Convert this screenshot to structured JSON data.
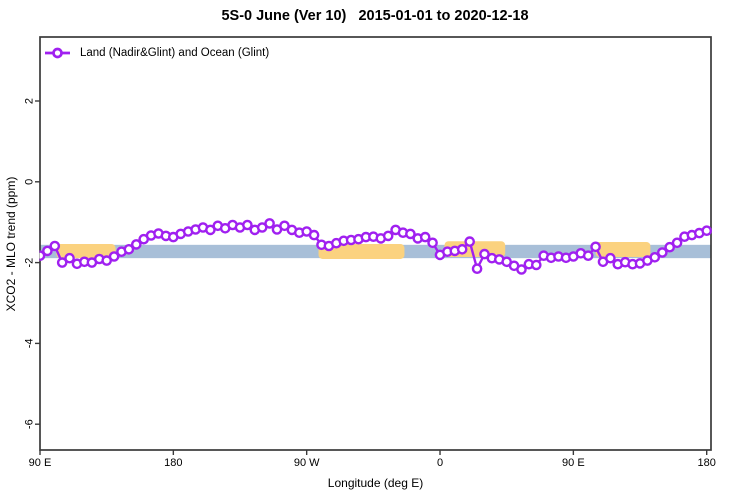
{
  "title": "5S-0 June (Ver 10)   2015-01-01 to 2020-12-18",
  "legend": {
    "label": "Land (Nadir&Glint) and Ocean (Glint)"
  },
  "axes": {
    "x_label": "Longitude (deg E)",
    "y_label": "XCO2 - MLO trend (ppm)"
  },
  "colors": {
    "series": "#a020f0",
    "marker_fill": "#ffffff",
    "band": "#a8bfd8",
    "highlight": "#fbd27f",
    "frame": "#3a3a3a",
    "background": "#ffffff"
  },
  "chart_data": {
    "type": "line",
    "title": "5S-0 June (Ver 10)   2015-01-01 to 2020-12-18",
    "xlabel": "Longitude (deg E)",
    "ylabel": "XCO2 - MLO trend (ppm)",
    "grid": false,
    "legend_position": "top-left-inside",
    "xlim": [
      90,
      540
    ],
    "ylim": [
      -6.6,
      3.6
    ],
    "x_ticks": [
      {
        "pos": 90,
        "label": "90 E"
      },
      {
        "pos": 180,
        "label": "180"
      },
      {
        "pos": 270,
        "label": "90 W"
      },
      {
        "pos": 360,
        "label": "0"
      },
      {
        "pos": 450,
        "label": "90 E"
      },
      {
        "pos": 540,
        "label": "180"
      }
    ],
    "y_ticks": [
      {
        "pos": 2,
        "label": "2"
      },
      {
        "pos": 0,
        "label": "0"
      },
      {
        "pos": -2,
        "label": "-2"
      },
      {
        "pos": -4,
        "label": "-4"
      },
      {
        "pos": -6,
        "label": "-6"
      }
    ],
    "band": {
      "y_min": -1.89,
      "y_max": -1.56,
      "color": "#a8bfd8"
    },
    "patches": [
      {
        "x_min": 101,
        "x_max": 141,
        "y_min": -1.89,
        "y_max": -1.54,
        "color": "#fbd27f"
      },
      {
        "x_min": 278,
        "x_max": 336,
        "y_min": -1.91,
        "y_max": -1.54,
        "color": "#fbd27f"
      },
      {
        "x_min": 363,
        "x_max": 404,
        "y_min": -1.86,
        "y_max": -1.47,
        "color": "#fbd27f"
      },
      {
        "x_min": 465,
        "x_max": 502,
        "y_min": -1.86,
        "y_max": -1.49,
        "color": "#fbd27f"
      }
    ],
    "series": [
      {
        "name": "Land (Nadir&Glint) and Ocean (Glint)",
        "marker": "open-circle",
        "color": "#a020f0",
        "x": [
          90,
          95,
          100,
          105,
          110,
          115,
          120,
          125,
          130,
          135,
          140,
          145,
          150,
          155,
          160,
          165,
          170,
          175,
          180,
          185,
          190,
          195,
          200,
          205,
          210,
          215,
          220,
          225,
          230,
          235,
          240,
          245,
          250,
          255,
          260,
          265,
          270,
          275,
          280,
          285,
          290,
          295,
          300,
          305,
          310,
          315,
          320,
          325,
          330,
          335,
          340,
          345,
          350,
          355,
          360,
          365,
          370,
          375,
          380,
          385,
          390,
          395,
          400,
          405,
          410,
          415,
          420,
          425,
          430,
          435,
          440,
          445,
          450,
          455,
          460,
          465,
          470,
          475,
          480,
          485,
          490,
          495,
          500,
          505,
          510,
          515,
          520,
          525,
          530,
          535,
          540
        ],
        "y": [
          -1.83,
          -1.71,
          -1.59,
          -2.0,
          -1.89,
          -2.03,
          -1.98,
          -2.0,
          -1.91,
          -1.95,
          -1.85,
          -1.73,
          -1.67,
          -1.55,
          -1.42,
          -1.33,
          -1.28,
          -1.34,
          -1.37,
          -1.29,
          -1.23,
          -1.18,
          -1.13,
          -1.19,
          -1.09,
          -1.15,
          -1.07,
          -1.13,
          -1.07,
          -1.19,
          -1.13,
          -1.03,
          -1.18,
          -1.09,
          -1.19,
          -1.26,
          -1.23,
          -1.32,
          -1.56,
          -1.59,
          -1.52,
          -1.46,
          -1.44,
          -1.42,
          -1.37,
          -1.36,
          -1.4,
          -1.34,
          -1.19,
          -1.26,
          -1.29,
          -1.4,
          -1.37,
          -1.51,
          -1.81,
          -1.73,
          -1.71,
          -1.67,
          -1.48,
          -2.15,
          -1.79,
          -1.89,
          -1.92,
          -1.98,
          -2.08,
          -2.17,
          -2.04,
          -2.06,
          -1.83,
          -1.88,
          -1.85,
          -1.88,
          -1.85,
          -1.77,
          -1.83,
          -1.61,
          -1.98,
          -1.89,
          -2.04,
          -1.99,
          -2.04,
          -2.02,
          -1.95,
          -1.87,
          -1.75,
          -1.62,
          -1.51,
          -1.36,
          -1.32,
          -1.27,
          -1.21
        ]
      }
    ]
  }
}
